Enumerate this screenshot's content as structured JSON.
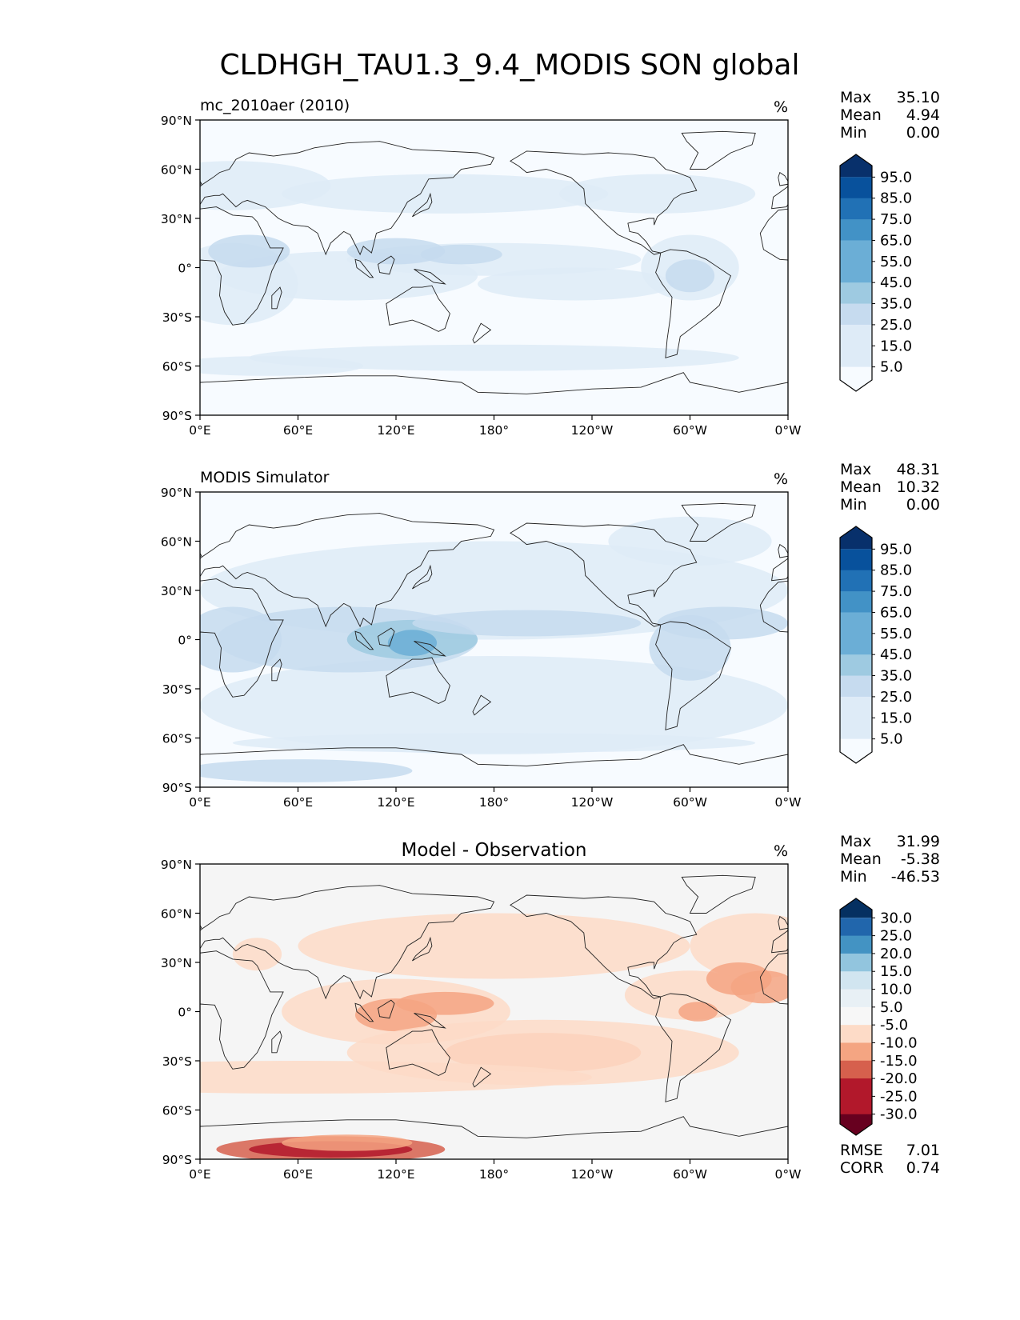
{
  "figure": {
    "title": "CLDHGH_TAU1.3_9.4_MODIS SON global",
    "units": "%"
  },
  "colors": {
    "blues": [
      "#f7fbff",
      "#deebf7",
      "#c6dbef",
      "#9ecae1",
      "#6baed6",
      "#4292c6",
      "#2171b5",
      "#08519c",
      "#08306b"
    ],
    "diverging": [
      "#67001f",
      "#b2182b",
      "#d6604d",
      "#f4a582",
      "#fddbc7",
      "#f7f7f7",
      "#d1e5f0",
      "#92c5de",
      "#4393c3",
      "#2166ac",
      "#053061"
    ],
    "background_blue": "#f7fbff",
    "background_diff": "#f5f5f5",
    "coastline": "#222222"
  },
  "chart_data": [
    {
      "type": "heatmap",
      "title": "mc_2010aer (2010)",
      "units": "%",
      "stats": [
        {
          "label": "Max",
          "value": "35.10"
        },
        {
          "label": "Mean",
          "value": "4.94"
        },
        {
          "label": "Min",
          "value": "0.00"
        }
      ],
      "colorbar": {
        "labels": [
          "95.0",
          "85.0",
          "75.0",
          "65.0",
          "55.0",
          "45.0",
          "35.0",
          "25.0",
          "15.0",
          "5.0"
        ],
        "palette": "blues",
        "extend": "both"
      },
      "xticks": [
        "0°E",
        "60°E",
        "120°E",
        "180°",
        "120°W",
        "60°W",
        "0°W"
      ],
      "yticks": [
        "90°N",
        "60°N",
        "30°N",
        "0°",
        "30°S",
        "60°S",
        "90°S"
      ],
      "xlim": [
        0,
        360
      ],
      "ylim": [
        -90,
        90
      ]
    },
    {
      "type": "heatmap",
      "title": "MODIS Simulator",
      "units": "%",
      "stats": [
        {
          "label": "Max",
          "value": "48.31"
        },
        {
          "label": "Mean",
          "value": "10.32"
        },
        {
          "label": "Min",
          "value": "0.00"
        }
      ],
      "colorbar": {
        "labels": [
          "95.0",
          "85.0",
          "75.0",
          "65.0",
          "55.0",
          "45.0",
          "35.0",
          "25.0",
          "15.0",
          "5.0"
        ],
        "palette": "blues",
        "extend": "both"
      },
      "xticks": [
        "0°E",
        "60°E",
        "120°E",
        "180°",
        "120°W",
        "60°W",
        "0°W"
      ],
      "yticks": [
        "90°N",
        "60°N",
        "30°N",
        "0°",
        "30°S",
        "60°S",
        "90°S"
      ],
      "xlim": [
        0,
        360
      ],
      "ylim": [
        -90,
        90
      ]
    },
    {
      "type": "heatmap",
      "title": "Model - Observation",
      "units": "%",
      "stats": [
        {
          "label": "Max",
          "value": "31.99"
        },
        {
          "label": "Mean",
          "value": "-5.38"
        },
        {
          "label": "Min",
          "value": "-46.53"
        }
      ],
      "colorbar": {
        "labels": [
          "30.0",
          "25.0",
          "20.0",
          "15.0",
          "10.0",
          "5.0",
          "-5.0",
          "-10.0",
          "-15.0",
          "-20.0",
          "-25.0",
          "-30.0"
        ],
        "palette": "diverging",
        "extend": "both"
      },
      "metrics": [
        {
          "label": "RMSE",
          "value": "7.01"
        },
        {
          "label": "CORR",
          "value": "0.74"
        }
      ],
      "xticks": [
        "0°E",
        "60°E",
        "120°E",
        "180°",
        "120°W",
        "60°W",
        "0°W"
      ],
      "yticks": [
        "90°N",
        "60°N",
        "30°N",
        "0°",
        "30°S",
        "60°S",
        "90°S"
      ],
      "xlim": [
        0,
        360
      ],
      "ylim": [
        -90,
        90
      ]
    }
  ]
}
